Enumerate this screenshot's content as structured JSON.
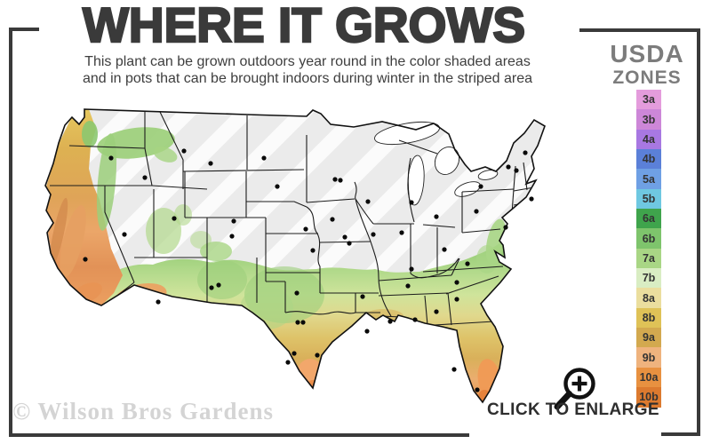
{
  "title": "WHERE IT GROWS",
  "subtitle": {
    "line1": "This plant can be grown outdoors year round in the color shaded areas",
    "line2": "and in pots that can be brought indoors during winter in the striped area"
  },
  "legend": {
    "heading1": "USDA",
    "heading2": "ZONES",
    "zones": [
      {
        "label": "3a",
        "color": "#e49cdc"
      },
      {
        "label": "3b",
        "color": "#cd87d8"
      },
      {
        "label": "4a",
        "color": "#a878e2"
      },
      {
        "label": "4b",
        "color": "#5b80d8"
      },
      {
        "label": "5a",
        "color": "#6fa0e4"
      },
      {
        "label": "5b",
        "color": "#6fc8e1"
      },
      {
        "label": "6a",
        "color": "#3fa44c"
      },
      {
        "label": "6b",
        "color": "#7ec46c"
      },
      {
        "label": "7a",
        "color": "#a9d685"
      },
      {
        "label": "7b",
        "color": "#d9edc3"
      },
      {
        "label": "8a",
        "color": "#ebde9e"
      },
      {
        "label": "8b",
        "color": "#dfc257"
      },
      {
        "label": "9a",
        "color": "#d3a94f"
      },
      {
        "label": "9b",
        "color": "#efb37e"
      },
      {
        "label": "10a",
        "color": "#e89140"
      },
      {
        "label": "10b",
        "color": "#dc7a2f"
      }
    ]
  },
  "map": {
    "watermark": "© Wilson Bros Gardens"
  },
  "enlarge": {
    "label": "CLICK TO ENLARGE"
  },
  "colors": {
    "frame": "#3a3a3a",
    "title": "#3a3a3a",
    "subtitle": "#3e3e3e",
    "legend_heading": "#7c7c7c",
    "watermark": "#d4d4d4",
    "striped_area": "#ebebeb"
  }
}
